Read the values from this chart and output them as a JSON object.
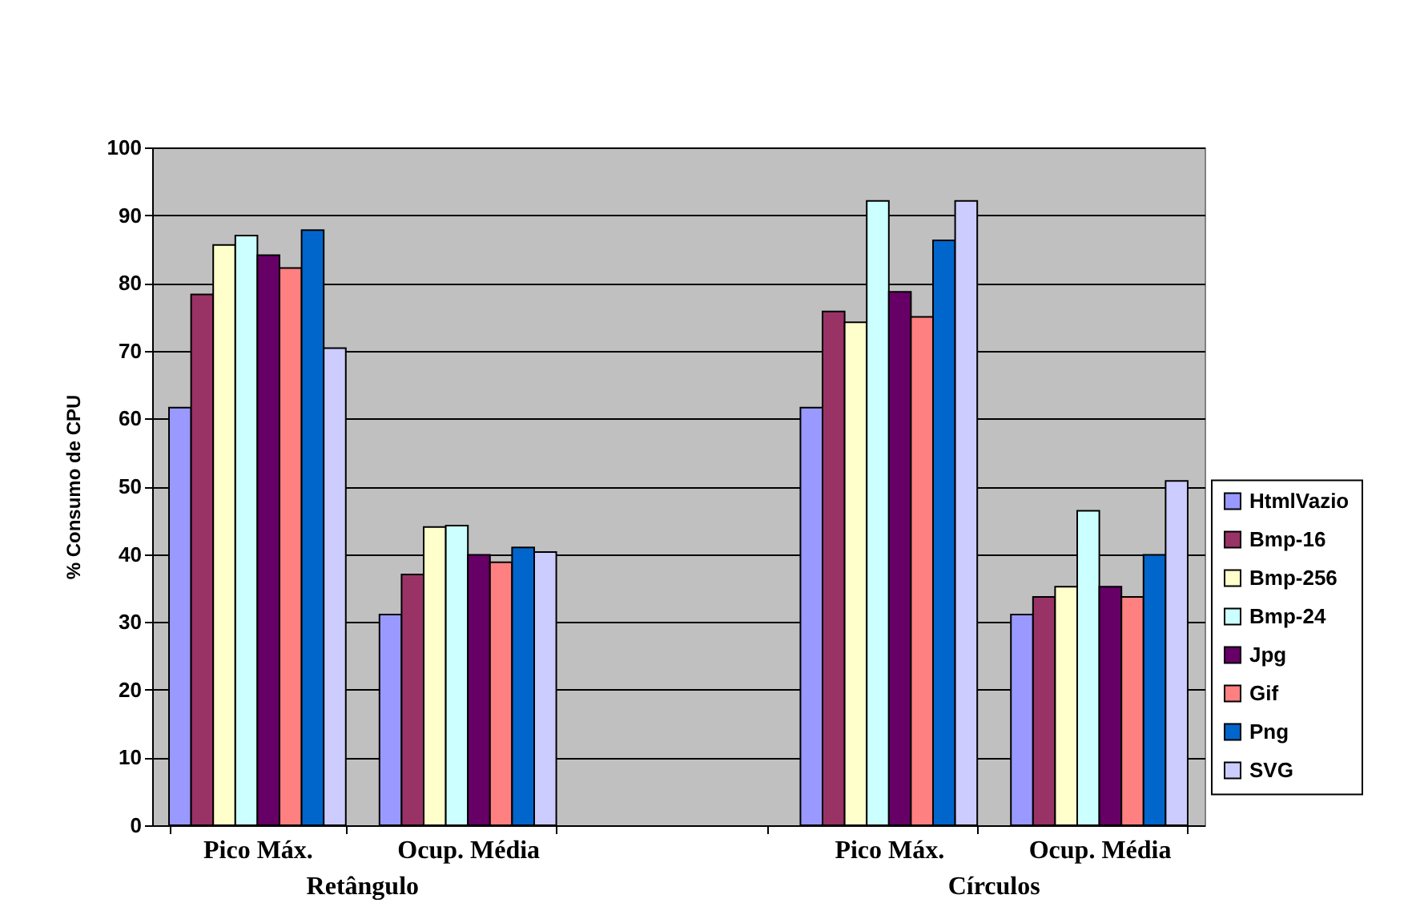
{
  "chart_data": {
    "type": "bar",
    "ylabel": "% Consumo de CPU",
    "categories": [
      "Pico Máx.",
      "Ocup. Média",
      null,
      "Pico Máx.",
      "Ocup. Média"
    ],
    "series": [
      {
        "name": "HtmlVazio",
        "color": "#9999ff",
        "values": [
          61.6,
          31.1,
          null,
          61.6,
          31.1
        ]
      },
      {
        "name": "Bmp-16",
        "color": "#993366",
        "values": [
          78.3,
          37.0,
          null,
          75.8,
          33.7
        ]
      },
      {
        "name": "Bmp-256",
        "color": "#ffffcc",
        "values": [
          85.6,
          44.0,
          null,
          74.2,
          35.2
        ]
      },
      {
        "name": "Bmp-24",
        "color": "#ccffff",
        "values": [
          87.0,
          44.2,
          null,
          92.1,
          46.4
        ]
      },
      {
        "name": "Jpg",
        "color": "#660066",
        "values": [
          84.1,
          39.9,
          null,
          78.7,
          35.2
        ]
      },
      {
        "name": "Gif",
        "color": "#ff8080",
        "values": [
          82.2,
          38.8,
          null,
          75.0,
          33.7
        ]
      },
      {
        "name": "Png",
        "color": "#0066cc",
        "values": [
          87.8,
          41.0,
          null,
          86.3,
          39.9
        ]
      },
      {
        "name": "SVG",
        "color": "#ccccff",
        "values": [
          70.4,
          40.3,
          null,
          92.1,
          50.8
        ]
      }
    ],
    "ylim": [
      0,
      100
    ],
    "yticks": [
      0,
      10,
      20,
      30,
      40,
      50,
      60,
      70,
      80,
      90,
      100
    ],
    "grid": "y",
    "legend": "right",
    "annotations": [
      "Retângulo",
      "Círculos"
    ]
  }
}
